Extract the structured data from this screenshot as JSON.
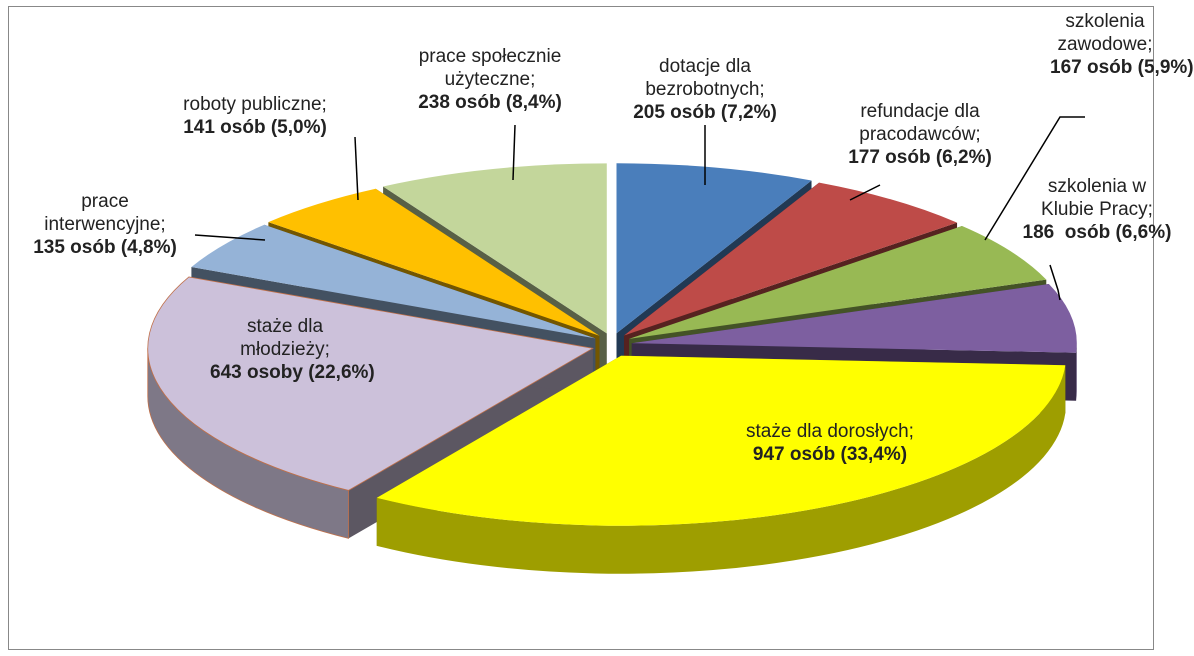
{
  "chart_data": {
    "type": "pie",
    "categories": [
      "dotacje dla bezrobotnych;",
      "refundacje dla pracodawców;",
      "szkolenia zawodowe;",
      "szkolenia w Klubie Pracy;",
      "staże dla dorosłych;",
      "staże dla młodzieży;",
      "prace interwencyjne;",
      "roboty publiczne;",
      "prace społecznie użyteczne;"
    ],
    "values": [
      205,
      177,
      167,
      186,
      947,
      643,
      135,
      141,
      238
    ],
    "value_labels": [
      "205 osób (7,2%)",
      "177 osób (6,2%)",
      "167 osób (5,9%)",
      "186  osób (6,6%)",
      "947 osób (33,4%)",
      "643 osoby (22,6%)",
      "135 osób (4,8%)",
      "141 osób (5,0%)",
      "238 osób (8,4%)"
    ],
    "colors": [
      "#4a7ebb",
      "#be4b48",
      "#98b954",
      "#7d5fa0",
      "#ffff00",
      "#ccc1da",
      "#95b3d7",
      "#ffc000",
      "#c3d69b"
    ]
  }
}
